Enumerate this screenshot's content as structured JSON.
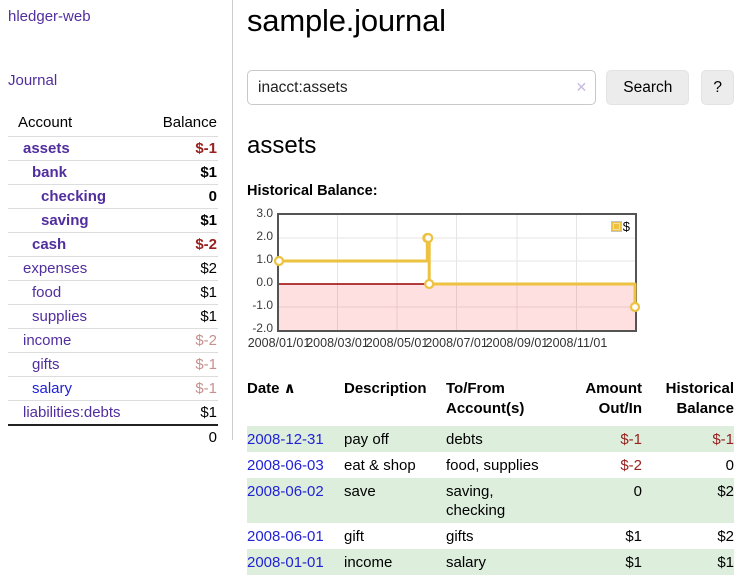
{
  "colors": {
    "link_purple": "#512e9e",
    "link_blue": "#2222d6",
    "negative": "#97211d",
    "negative_faded": "#c9908f",
    "row_stripe_green": "#ddeedd",
    "chart_line": "#edc240",
    "chart_zero_line": "#990000",
    "chart_negative_fill": "rgba(255,0,0,0.12)",
    "grid": "#e5e5e5"
  },
  "sidebar": {
    "brand": "hledger-web",
    "journal_link": "Journal",
    "accounts_table": {
      "headers": {
        "account": "Account",
        "balance": "Balance"
      },
      "rows": [
        {
          "name": "assets",
          "level": 1,
          "balance": "$-1",
          "bold": true,
          "tone": "neg"
        },
        {
          "name": "bank",
          "level": 2,
          "balance": "$1",
          "bold": true,
          "tone": ""
        },
        {
          "name": "checking",
          "level": 3,
          "balance": "0",
          "bold": true,
          "tone": ""
        },
        {
          "name": "saving",
          "level": 3,
          "balance": "$1",
          "bold": true,
          "tone": ""
        },
        {
          "name": "cash",
          "level": 2,
          "balance": "$-2",
          "bold": true,
          "tone": "neg"
        },
        {
          "name": "expenses",
          "level": 1,
          "balance": "$2",
          "bold": false,
          "tone": ""
        },
        {
          "name": "food",
          "level": 2,
          "balance": "$1",
          "bold": false,
          "tone": ""
        },
        {
          "name": "supplies",
          "level": 2,
          "balance": "$1",
          "bold": false,
          "tone": ""
        },
        {
          "name": "income",
          "level": 1,
          "balance": "$-2",
          "bold": false,
          "tone": "negfade"
        },
        {
          "name": "gifts",
          "level": 2,
          "balance": "$-1",
          "bold": false,
          "tone": "negfade"
        },
        {
          "name": "salary",
          "level": 2,
          "balance": "$-1",
          "bold": false,
          "tone": "negfade",
          "link": "blue"
        },
        {
          "name": "liabilities:debts",
          "level": 1,
          "balance": "$1",
          "bold": false,
          "tone": ""
        }
      ],
      "total": "0"
    }
  },
  "main": {
    "title": "sample.journal",
    "search": {
      "value": "inacct:assets",
      "clear_icon": "✕",
      "button": "Search",
      "help_button": "?"
    },
    "account_heading": "assets",
    "chart_label": "Historical Balance:",
    "register": {
      "headers": [
        {
          "label": "Date",
          "sort_icon": "∧",
          "align": "left",
          "colclass": "c-date"
        },
        {
          "label": "Description",
          "align": "left",
          "colclass": "c-desc"
        },
        {
          "label": "To/From\nAccount(s)",
          "align": "left",
          "colclass": "c-acct"
        },
        {
          "label": "Amount\nOut/In",
          "align": "right",
          "colclass": "c-amt"
        },
        {
          "label": "Historical\nBalance",
          "align": "right",
          "colclass": "c-bal"
        }
      ],
      "rows": [
        {
          "date": "2008-12-31",
          "description": "pay off",
          "accounts": "debts",
          "amount": "$-1",
          "balance": "$-1",
          "amount_negative": true,
          "balance_negative": true,
          "stripe": true
        },
        {
          "date": "2008-06-03",
          "description": "eat & shop",
          "accounts": "food, supplies",
          "amount": "$-2",
          "balance": "0",
          "amount_negative": true,
          "balance_negative": false,
          "stripe": false
        },
        {
          "date": "2008-06-02",
          "description": "save",
          "accounts": "saving,\nchecking",
          "amount": "0",
          "balance": "$2",
          "amount_negative": false,
          "balance_negative": false,
          "stripe": true
        },
        {
          "date": "2008-06-01",
          "description": "gift",
          "accounts": "gifts",
          "amount": "$1",
          "balance": "$2",
          "amount_negative": false,
          "balance_negative": false,
          "stripe": false
        },
        {
          "date": "2008-01-01",
          "description": "income",
          "accounts": "salary",
          "amount": "$1",
          "balance": "$1",
          "amount_negative": false,
          "balance_negative": false,
          "stripe": true
        }
      ]
    }
  },
  "chart_data": {
    "type": "line",
    "title": "Historical Balance:",
    "step": true,
    "series": [
      {
        "name": "$",
        "color": "#edc240",
        "points": [
          {
            "date": "2008-01-01",
            "value": 1
          },
          {
            "date": "2008-06-01",
            "value": 2
          },
          {
            "date": "2008-06-02",
            "value": 2
          },
          {
            "date": "2008-06-03",
            "value": 0
          },
          {
            "date": "2008-12-31",
            "value": -1
          }
        ]
      }
    ],
    "x_range": [
      "2008-01-01",
      "2008-12-31"
    ],
    "ylim": [
      -2,
      3
    ],
    "y_ticks": [
      "3.0",
      "2.0",
      "1.0",
      "0.0",
      "-1.0",
      "-2.0"
    ],
    "x_ticks": [
      "2008/01/01",
      "2008/03/01",
      "2008/05/01",
      "2008/07/01",
      "2008/09/01",
      "2008/11/01"
    ],
    "legend_position": "top-right",
    "grid": true,
    "zero_line": true,
    "negative_region_shaded": true
  }
}
